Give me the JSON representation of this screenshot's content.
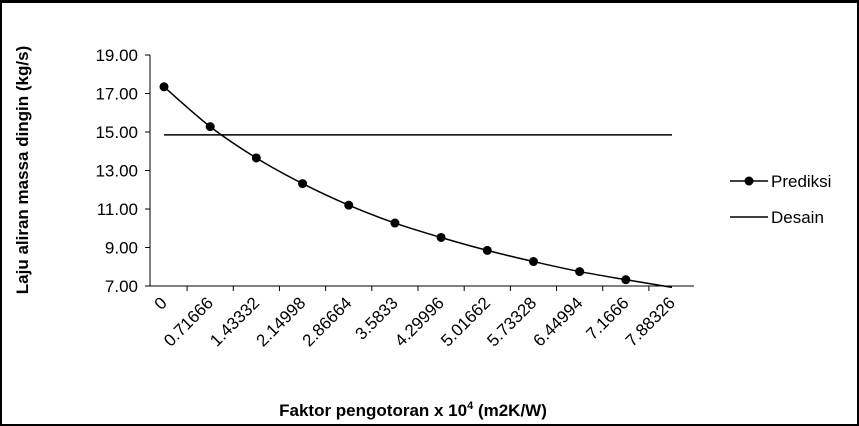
{
  "chart_data": {
    "type": "line",
    "x": [
      "0",
      "0.71666",
      "1.43332",
      "2.14998",
      "2.86664",
      "3.5833",
      "4.29996",
      "5.01662",
      "5.73328",
      "6.44994",
      "7.1666",
      "7.88326"
    ],
    "xlabel": {
      "prefix": "Faktor pengotoran x 10",
      "superscript": "4",
      "suffix": " (m2K/W)"
    },
    "ylabel": "Laju aliran massa dingin (kg/s)",
    "ylim": [
      7,
      19
    ],
    "yticks": [
      "7.00",
      "9.00",
      "11.00",
      "13.00",
      "15.00",
      "17.00",
      "19.00"
    ],
    "series": [
      {
        "name": "Prediksi",
        "marker": "circle",
        "x_values": [
          0,
          0.71666,
          1.43332,
          2.14998,
          2.86664,
          3.5833,
          4.29996,
          5.01662,
          5.73328,
          6.44994,
          7.1666
        ],
        "values": [
          17.35,
          15.28,
          13.65,
          12.32,
          11.2,
          10.27,
          9.52,
          8.85,
          8.27,
          7.75,
          7.33
        ],
        "curve_end": {
          "x": 7.88326,
          "y": 6.93
        }
      },
      {
        "name": "Desain",
        "marker": "none",
        "x_values": [
          0,
          7.88326
        ],
        "values": [
          14.85,
          14.85
        ]
      }
    ],
    "grid": false,
    "legend_position": "right",
    "colors": {
      "line": "#000000",
      "marker": "#000000"
    }
  }
}
